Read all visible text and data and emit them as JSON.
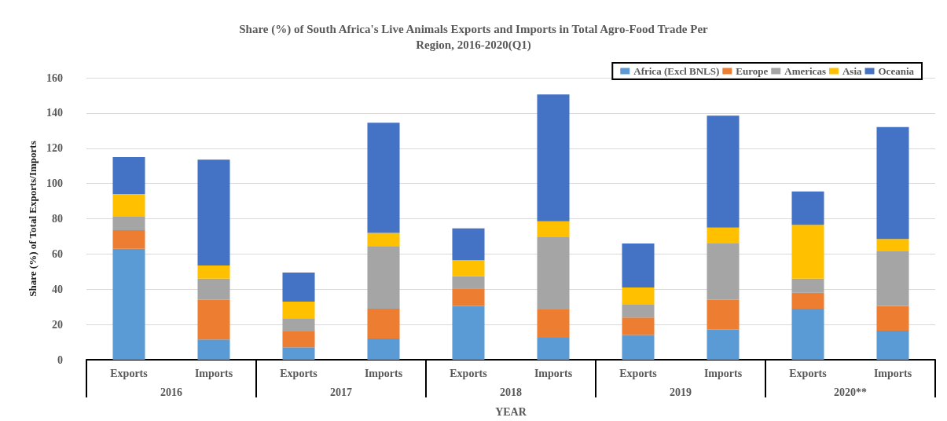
{
  "chart_data": {
    "type": "bar",
    "title": "Share (%) of South Africa's Live Animals Exports and Imports in Total Agro-Food Trade Per\nRegion, 2016-2020(Q1)",
    "xlabel": "YEAR",
    "ylabel": "Share (%) of Total Exports/Imports",
    "categories": [
      "Exports",
      "Imports",
      "Exports",
      "Imports",
      "Exports",
      "Imports",
      "Exports",
      "Imports",
      "Exports",
      "Imports"
    ],
    "annotations": [
      "2016",
      "2017",
      "2018",
      "2019",
      "2020**"
    ],
    "stacked": true,
    "ylim": [
      0,
      160
    ],
    "yticks": [
      0,
      20,
      40,
      60,
      80,
      100,
      120,
      140,
      160
    ],
    "grid": "y",
    "legend": "top right",
    "series": [
      {
        "name": "Africa (Excl BNLS)",
        "color": "#5b9bd5",
        "values": [
          63,
          11.5,
          7,
          12,
          30.5,
          12.5,
          14,
          17,
          29,
          16.5
        ]
      },
      {
        "name": "Europe",
        "color": "#ed7d31",
        "values": [
          10.5,
          22.5,
          9,
          17,
          10,
          16,
          10,
          17,
          9,
          14
        ]
      },
      {
        "name": "Americas",
        "color": "#a5a5a5",
        "values": [
          8,
          12,
          7.5,
          35.5,
          7,
          41,
          7.5,
          32,
          8,
          31
        ]
      },
      {
        "name": "Asia",
        "color": "#ffc000",
        "values": [
          12.5,
          7.5,
          9.5,
          7.5,
          9,
          9,
          9.5,
          9,
          30.5,
          7
        ]
      },
      {
        "name": "Oceania",
        "color": "#4472c4",
        "values": [
          21,
          60,
          16.5,
          62.5,
          18,
          72,
          25,
          63.5,
          19,
          63.5
        ]
      }
    ]
  }
}
